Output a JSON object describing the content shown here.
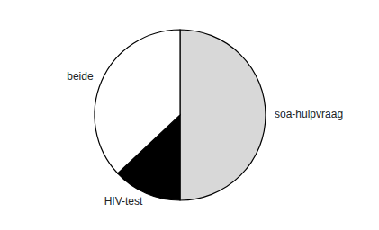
{
  "chart_data": {
    "type": "pie",
    "categories": [
      "soa-hulpvraag",
      "HIV-test",
      "beide"
    ],
    "values": [
      50,
      13,
      37
    ],
    "colors": [
      "#d8d8d8",
      "#000000",
      "#ffffff"
    ]
  }
}
